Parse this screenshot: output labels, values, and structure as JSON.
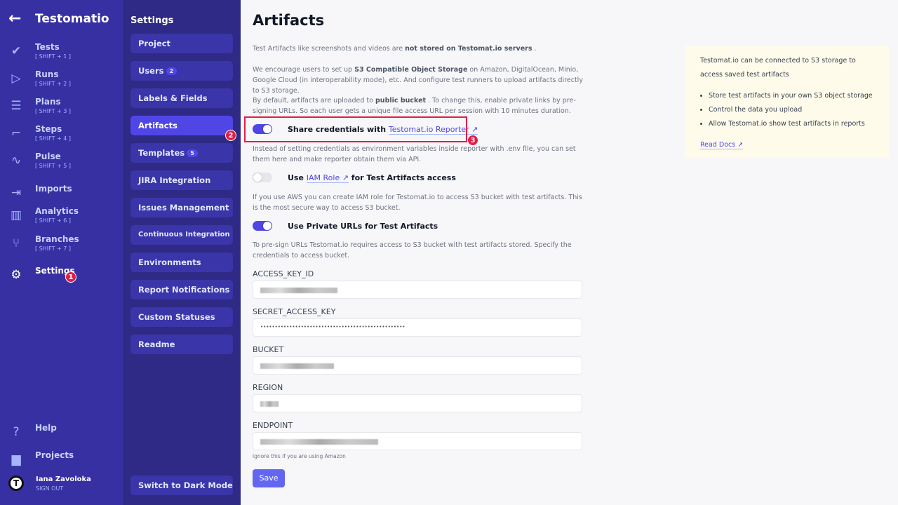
{
  "app": {
    "title": "Testomatio",
    "back_icon": "arrow-left-icon"
  },
  "nav": {
    "items": [
      {
        "label": "Tests",
        "shortcut": "[ SHIFT + 1 ]",
        "icon": "check-icon"
      },
      {
        "label": "Runs",
        "shortcut": "[ SHIFT + 2 ]",
        "icon": "play-circle-icon"
      },
      {
        "label": "Plans",
        "shortcut": "[ SHIFT + 3 ]",
        "icon": "list-check-icon"
      },
      {
        "label": "Steps",
        "shortcut": "[ SHIFT + 4 ]",
        "icon": "stairs-icon"
      },
      {
        "label": "Pulse",
        "shortcut": "[ SHIFT + 5 ]",
        "icon": "pulse-icon"
      },
      {
        "label": "Imports",
        "shortcut": "",
        "icon": "import-icon"
      },
      {
        "label": "Analytics",
        "shortcut": "[ SHIFT + 6 ]",
        "icon": "chart-icon"
      },
      {
        "label": "Branches",
        "shortcut": "[ SHIFT + 7 ]",
        "icon": "branch-icon"
      },
      {
        "label": "Settings",
        "shortcut": "",
        "icon": "gear-icon"
      }
    ],
    "help": "Help",
    "projects": "Projects",
    "user": "Iana Zavoloka",
    "sign_out": "SIGN OUT"
  },
  "settings": {
    "heading": "Settings",
    "items": [
      {
        "label": "Project"
      },
      {
        "label": "Users",
        "count": "2"
      },
      {
        "label": "Labels & Fields"
      },
      {
        "label": "Artifacts"
      },
      {
        "label": "Templates",
        "count": "5"
      },
      {
        "label": "JIRA Integration"
      },
      {
        "label": "Issues Management"
      },
      {
        "label": "Continuous Integration"
      },
      {
        "label": "Environments"
      },
      {
        "label": "Report Notifications"
      },
      {
        "label": "Custom Statuses"
      },
      {
        "label": "Readme"
      }
    ],
    "dark_mode": "Switch to Dark Mode"
  },
  "markers": [
    "1",
    "2",
    "3"
  ],
  "main": {
    "title": "Artifacts",
    "p1a": "Test Artifacts like screenshots and videos are ",
    "p1b": "not stored on Testomat.io servers",
    "p1c": " .",
    "p2a": "We encourage users to set up ",
    "p2b": "S3 Compatible Object Storage",
    "p2c": " on Amazon, DigitalOcean, Minio, Google Cloud (in interoperability mode), etc. And configure test runners to upload artifacts directly to S3 storage.",
    "p3a": "By default, artifacts are uploaded to ",
    "p3b": "public bucket",
    "p3c": " . To change this, enable private links by pre-signing URLs. So each user gets a unique file access URL per session with 10 minutes duration.",
    "t1": {
      "pre": "Share credentials with ",
      "link": "Testomat.io Reporter ↗",
      "on": true
    },
    "t1_desc": "Instead of setting credentials as environment variables inside reporter with .env file, you can set them here and make reporter obtain them via API.",
    "t2": {
      "pre": "Use ",
      "link": "IAM Role ↗",
      "post": " for Test Artifacts access",
      "on": false
    },
    "t2_desc": "If you use AWS you can create IAM role for Testomat.io to access S3 bucket with test artifacts. This is the most secure way to access S3 bucket.",
    "t3": {
      "label": "Use Private URLs for Test Artifacts",
      "on": true
    },
    "t3_desc": "To pre-sign URLs Testomat.io requires access to S3 bucket with test artifacts stored. Specify the credentials to access bucket.",
    "fields": {
      "access_key": "ACCESS_KEY_ID",
      "secret": "SECRET_ACCESS_KEY",
      "secret_value": "••••••••••••••••••••••••••••••••••••••••••••••••••",
      "bucket": "BUCKET",
      "region": "REGION",
      "endpoint": "ENDPOINT",
      "endpoint_hint": "ignore this if you are using Amazon"
    },
    "save": "Save"
  },
  "info": {
    "text": "Testomat.io can be connected to S3 storage to access saved test artifacts",
    "bullets": [
      "Store test artifacts in your own S3 object storage",
      "Control the data you upload",
      "Allow Testomat.io show test artifacts in reports"
    ],
    "link": "Read Docs ↗"
  }
}
